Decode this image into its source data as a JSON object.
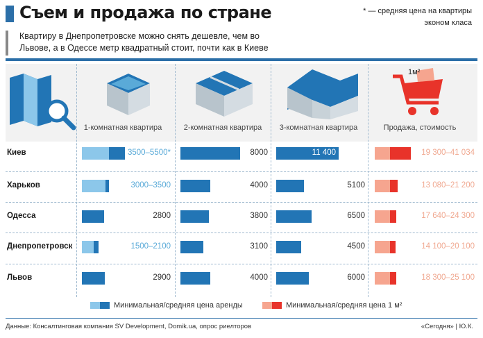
{
  "header": {
    "title": "Съем и продажа по стране",
    "note_line1": "* — средняя цена на квартиры",
    "note_line2": "эконом класа",
    "subtitle_line1": "Квартиру в Днепропетровске можно снять дешевле, чем во",
    "subtitle_line2": "Львове, а в Одессе метр квадратный стоит, почти как в Киеве"
  },
  "columns": [
    "1-комнатная квартира",
    "2-комнатная квартира",
    "3-комнатная квартира",
    "Продажа, стоимость"
  ],
  "price_icon_label": "1м²",
  "chart_data": {
    "type": "table",
    "rows": [
      "Киев",
      "Харьков",
      "Одесса",
      "Днепропетровск",
      "Львов"
    ],
    "rent_1room": {
      "labels": [
        "3500–5500*",
        "3000–3500",
        "2800",
        "1500–2100",
        "2900"
      ],
      "min": [
        3500,
        3000,
        null,
        1500,
        null
      ],
      "value": [
        5500,
        3500,
        2800,
        2100,
        2900
      ]
    },
    "rent_2room": {
      "labels": [
        "8000",
        "4000",
        "3800",
        "3100",
        "4000"
      ],
      "value": [
        8000,
        4000,
        3800,
        3100,
        4000
      ]
    },
    "rent_3room": {
      "labels": [
        "11 400",
        "5100",
        "6500",
        "4500",
        "6000"
      ],
      "value": [
        11400,
        5100,
        6500,
        4500,
        6000
      ]
    },
    "sale_m2": {
      "labels": [
        "19 300–41 034",
        "13 080–21 200",
        "17 640–24 300",
        "14 100–20 100",
        "18 300–25 100"
      ],
      "min": [
        19300,
        13080,
        17640,
        14100,
        18300
      ],
      "max": [
        41034,
        21200,
        24300,
        20100,
        25100
      ]
    },
    "colors": {
      "rent_min": "#8cc7ea",
      "rent": "#2275b5",
      "sale_min": "#f6a58f",
      "sale": "#e8332a"
    }
  },
  "legend": {
    "rent": "Минимальная/средняя цена аренды",
    "sale": "Минимальная/средняя цена 1 м²"
  },
  "footer": {
    "source": "Данные: Консалтинговая компания SV Development, Domik.ua, опрос риелторов",
    "credit": "«Сегодня» | Ю.К."
  }
}
